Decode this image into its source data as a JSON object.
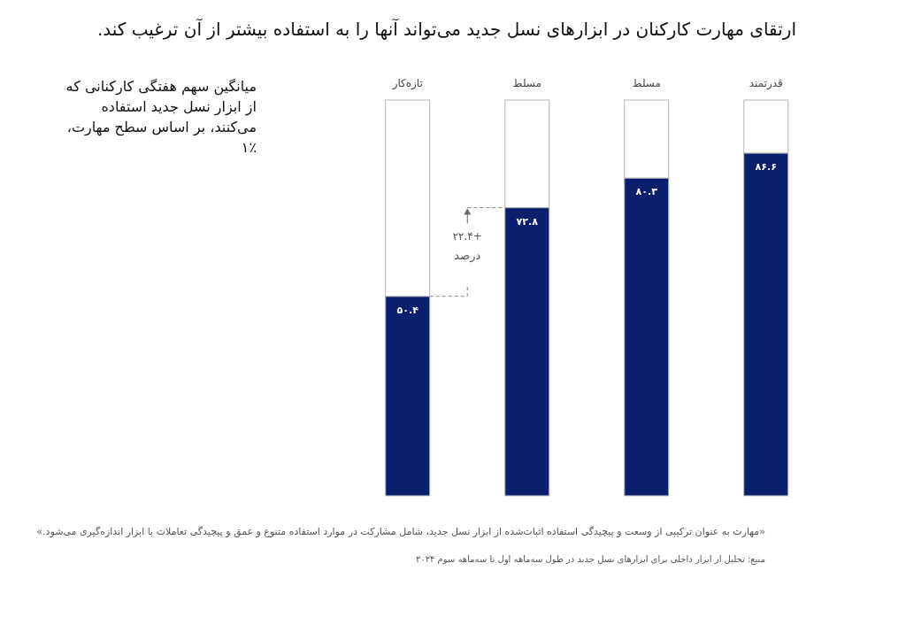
{
  "chart_data": {
    "type": "bar",
    "title": "ارتقای مهارت کارکنان در ابزارهای نسل جدید می‌تواند آنها را به استفاده بیشتر از آن ترغیب کند.",
    "subtitle": "میانگین سهم هفتگی کارکنانی که از ابزار نسل جدید استفاده می‌کنند، بر اساس سطح مهارت، ۱٪",
    "categories": [
      "تازه‌کار",
      "مسلط",
      "مسلط",
      "قدرتمند"
    ],
    "stacked": true,
    "ylim": [
      0,
      100
    ],
    "tick_labels": "x",
    "series": [
      {
        "color": "#0a1f6e",
        "values": [
          50.4,
          72.8,
          80.3,
          86.6
        ],
        "value_labels": [
          "۵۰.۴",
          "۷۲.۸",
          "۸۰.۳",
          "۸۶.۶"
        ]
      },
      {
        "color": "#ffffff",
        "values": [
          49.6,
          27.2,
          19.7,
          13.4
        ]
      }
    ],
    "annotations": [
      "+۲۲.۴ درصد",
      "«مهارت به عنوان ترکیبی از وسعت و پیچیدگی استفاده اثبات‌شده از ابزار نسل جدید، شامل مشارکت در موارد استفاده متنوع و عمق و پیچیدگی تعاملات با ابزار اندازه‌گیری می‌شود.»",
      "منبع: تحلیل از ابزار داخلی برای ابزارهای نسل جدید در طول سه‌ماهه اول تا سه‌ماهه سوم ۲۰۲۴"
    ]
  }
}
